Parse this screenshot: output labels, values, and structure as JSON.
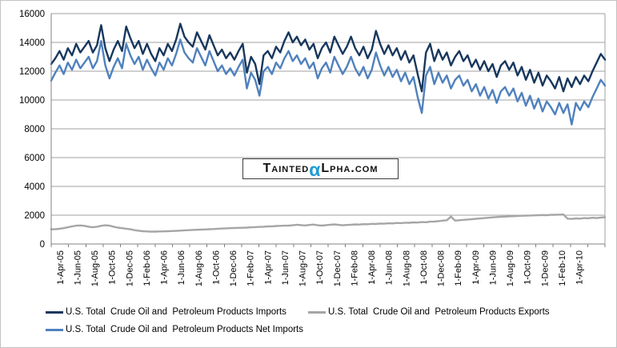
{
  "colors": {
    "imports": "#17375D",
    "exports": "#A6A6A6",
    "net_imports": "#4F81BD",
    "gridline": "#A0A0A0",
    "axis": "#808080",
    "text": "#000000",
    "watermark_alpha": "#1F9AD7",
    "watermark_border": "#3C3C3C",
    "chart_border": "#C2C2C2",
    "background": "#FFFFFF"
  },
  "watermark": {
    "part1": "Tainted",
    "alpha": "α",
    "part2": "Lpha.com"
  },
  "legend": {
    "items": [
      {
        "label": "U.S. Total  Crude Oil and  Petroleum Products Imports",
        "color": "#17375D"
      },
      {
        "label": "U.S. Total  Crude Oil and  Petroleum Products Exports",
        "color": "#A6A6A6"
      },
      {
        "label": "U.S. Total  Crude Oil and  Petroleum Products Net Imports",
        "color": "#4F81BD"
      }
    ]
  },
  "chart_data": {
    "type": "line",
    "title": "",
    "xlabel": "",
    "ylabel": "",
    "ylim": [
      0,
      16000
    ],
    "y_ticks": [
      0,
      2000,
      4000,
      6000,
      8000,
      10000,
      12000,
      14000,
      16000
    ],
    "grid": "horizontal",
    "legend_position": "bottom",
    "x_tick_labels": [
      "1-Apr-05",
      "1-Jun-05",
      "1-Aug-05",
      "1-Oct-05",
      "1-Dec-05",
      "1-Feb-06",
      "1-Apr-06",
      "1-Jun-06",
      "1-Aug-06",
      "1-Oct-06",
      "1-Dec-06",
      "1-Feb-07",
      "1-Apr-07",
      "1-Jun-07",
      "1-Aug-07",
      "1-Oct-07",
      "1-Dec-07",
      "1-Feb-08",
      "1-Apr-08",
      "1-Jun-08",
      "1-Aug-08",
      "1-Oct-08",
      "1-Dec-08",
      "1-Feb-09",
      "1-Apr-09",
      "1-Jun-09",
      "1-Aug-09",
      "1-Oct-09",
      "1-Dec-09",
      "1-Feb-10",
      "1-Apr-10"
    ],
    "x_note": "weekly series Apr-2005 to May-2010; values below are approx. biweekly readings, equal x-spacing",
    "series": [
      {
        "name": "U.S. Total Crude Oil and Petroleum Products Imports",
        "key": "imports",
        "color": "#17375D",
        "values": [
          12500,
          12900,
          13400,
          12800,
          13600,
          13100,
          13900,
          13300,
          13700,
          14100,
          13300,
          13800,
          15200,
          13600,
          12700,
          13500,
          14100,
          13400,
          15100,
          14300,
          13600,
          14100,
          13200,
          13900,
          13200,
          12700,
          13600,
          13100,
          13900,
          13400,
          14200,
          15300,
          14400,
          14000,
          13700,
          14700,
          14100,
          13500,
          14500,
          13800,
          13100,
          13500,
          12900,
          13300,
          12800,
          13400,
          13900,
          11900,
          13000,
          12500,
          11100,
          13100,
          13400,
          12900,
          13700,
          13300,
          14100,
          14700,
          14000,
          14400,
          13800,
          14200,
          13500,
          13900,
          12900,
          13600,
          14000,
          13300,
          14400,
          13800,
          13200,
          13700,
          14400,
          13600,
          13100,
          13700,
          12900,
          13500,
          14800,
          13900,
          13200,
          13800,
          13100,
          13600,
          12800,
          13400,
          12600,
          13100,
          11800,
          10600,
          13300,
          13900,
          12700,
          13500,
          12800,
          13300,
          12400,
          13000,
          13400,
          12700,
          13100,
          12300,
          12800,
          12100,
          12700,
          12000,
          12500,
          11600,
          12400,
          12700,
          12100,
          12600,
          11700,
          12300,
          11400,
          12100,
          11200,
          11900,
          11000,
          11700,
          11300,
          10800,
          11600,
          10600,
          11500,
          10900,
          11600,
          11100,
          11700,
          11300,
          12000,
          12600,
          13200,
          12800
        ]
      },
      {
        "name": "U.S. Total Crude Oil and Petroleum Products Exports",
        "key": "exports",
        "color": "#A6A6A6",
        "values": [
          1020,
          1030,
          1060,
          1100,
          1160,
          1220,
          1270,
          1290,
          1260,
          1200,
          1160,
          1200,
          1260,
          1300,
          1270,
          1200,
          1140,
          1100,
          1060,
          1020,
          960,
          920,
          890,
          870,
          860,
          860,
          870,
          880,
          890,
          900,
          910,
          930,
          950,
          960,
          980,
          990,
          1000,
          1010,
          1030,
          1040,
          1060,
          1070,
          1090,
          1100,
          1110,
          1120,
          1130,
          1140,
          1160,
          1170,
          1190,
          1200,
          1220,
          1230,
          1250,
          1260,
          1270,
          1280,
          1300,
          1340,
          1310,
          1290,
          1320,
          1350,
          1300,
          1280,
          1310,
          1340,
          1360,
          1330,
          1300,
          1320,
          1340,
          1360,
          1350,
          1380,
          1370,
          1400,
          1390,
          1420,
          1410,
          1440,
          1430,
          1460,
          1450,
          1480,
          1470,
          1500,
          1490,
          1520,
          1510,
          1550,
          1560,
          1590,
          1620,
          1650,
          1900,
          1620,
          1650,
          1680,
          1700,
          1720,
          1750,
          1770,
          1800,
          1820,
          1850,
          1870,
          1890,
          1900,
          1920,
          1930,
          1950,
          1960,
          1970,
          1980,
          1990,
          2000,
          2010,
          2000,
          2020,
          2030,
          2040,
          2050,
          1760,
          1740,
          1780,
          1760,
          1800,
          1790,
          1820,
          1800,
          1840,
          1860
        ]
      },
      {
        "name": "U.S. Total Crude Oil and Petroleum Products Net Imports",
        "key": "net_imports",
        "color": "#4F81BD",
        "values": [
          11350,
          11900,
          12400,
          11800,
          12600,
          12100,
          12800,
          12200,
          12600,
          13000,
          12200,
          12700,
          14100,
          12400,
          11500,
          12300,
          12900,
          12200,
          13900,
          13100,
          12500,
          13000,
          12100,
          12800,
          12200,
          11700,
          12600,
          12100,
          12900,
          12400,
          13200,
          14200,
          13300,
          12900,
          12600,
          13600,
          13000,
          12400,
          13400,
          12700,
          12000,
          12400,
          11800,
          12200,
          11700,
          12300,
          12800,
          10800,
          11900,
          11400,
          10300,
          12000,
          12300,
          11800,
          12600,
          12200,
          12900,
          13400,
          12700,
          13100,
          12500,
          12900,
          12200,
          12600,
          11500,
          12200,
          12600,
          11900,
          13000,
          12400,
          11800,
          12300,
          13000,
          12200,
          11700,
          12300,
          11500,
          12100,
          13300,
          12400,
          11700,
          12300,
          11600,
          12100,
          11300,
          11900,
          11100,
          11600,
          10200,
          9100,
          11700,
          12300,
          11100,
          11900,
          11200,
          11700,
          10800,
          11400,
          11700,
          11000,
          11400,
          10600,
          11100,
          10300,
          10900,
          10100,
          10700,
          9800,
          10600,
          10900,
          10300,
          10800,
          9900,
          10500,
          9600,
          10300,
          9400,
          10100,
          9200,
          9900,
          9500,
          9000,
          9800,
          9100,
          9700,
          8300,
          9800,
          9300,
          9900,
          9500,
          10200,
          10800,
          11400,
          11000
        ]
      }
    ]
  }
}
